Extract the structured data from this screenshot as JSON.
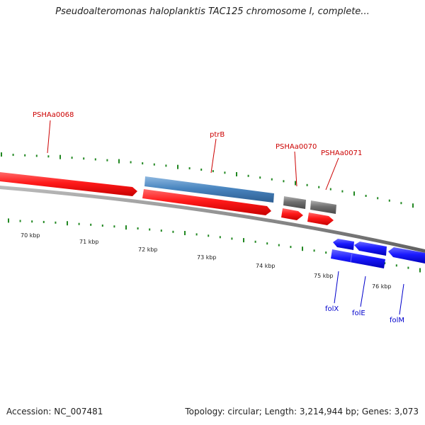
{
  "title": "Pseudoalteromonas haloplanktis TAC125 chromosome I, complete...",
  "footer": {
    "accession": "Accession: NC_007481",
    "summary": "Topology: circular; Length: 3,214,944 bp; Genes: 3,073"
  },
  "scale_labels": [
    "70 kbp",
    "71 kbp",
    "72 kbp",
    "73 kbp",
    "74 kbp",
    "75 kbp",
    "76 kbp"
  ],
  "gene_labels": {
    "forward": [
      "PSHAa0068",
      "ptrB",
      "PSHAa0070",
      "PSHAa0071"
    ],
    "reverse": [
      "folX",
      "folE",
      "folM"
    ]
  },
  "colors": {
    "cds_forward": "#ee0000",
    "gene_feature": "#4a86c0",
    "other_feature": "#707070",
    "cds_reverse": "#0000ee",
    "backbone": "#888888",
    "ticks": "#228822",
    "label_forward": "#cc0000",
    "label_reverse": "#0000cc"
  }
}
